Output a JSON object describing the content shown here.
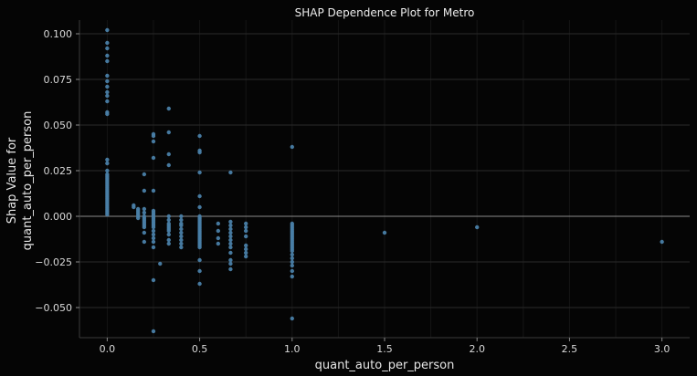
{
  "chart_data": {
    "type": "scatter",
    "title": "SHAP Dependence Plot for Metro",
    "xlabel": "quant_auto_per_person",
    "ylabel_lines": [
      "Shap Value for",
      "quant_auto_per_person"
    ],
    "xlim": [
      -0.15,
      3.15
    ],
    "ylim": [
      -0.0665,
      0.1075
    ],
    "x_ticks": [
      0.0,
      0.5,
      1.0,
      1.5,
      2.0,
      2.5,
      3.0
    ],
    "x_tick_labels": [
      "0.0",
      "0.5",
      "1.0",
      "1.5",
      "2.0",
      "2.5",
      "3.0"
    ],
    "y_ticks": [
      -0.05,
      -0.025,
      0.0,
      0.025,
      0.05,
      0.075,
      0.1
    ],
    "y_tick_labels": [
      "−0.050",
      "−0.025",
      "0.000",
      "0.025",
      "0.050",
      "0.075",
      "0.100"
    ],
    "x_minor_grid": [
      0.0,
      0.25,
      0.5,
      0.75,
      1.0,
      1.25,
      1.5,
      1.75,
      2.0,
      2.25,
      2.5,
      2.75,
      3.0
    ],
    "grid": true,
    "reference_line_y": 0.0,
    "point_color": "#4a7fa8",
    "points": [
      [
        0,
        0.102
      ],
      [
        0,
        0.095
      ],
      [
        0,
        0.092
      ],
      [
        0,
        0.088
      ],
      [
        0,
        0.085
      ],
      [
        0,
        0.077
      ],
      [
        0,
        0.074
      ],
      [
        0,
        0.071
      ],
      [
        0,
        0.068
      ],
      [
        0,
        0.066
      ],
      [
        0,
        0.063
      ],
      [
        0,
        0.057
      ],
      [
        0,
        0.056
      ],
      [
        0,
        0.031
      ],
      [
        0,
        0.029
      ],
      [
        0,
        0.025
      ],
      [
        0,
        0.023
      ],
      [
        0,
        0.022
      ],
      [
        0,
        0.021
      ],
      [
        0,
        0.02
      ],
      [
        0,
        0.019
      ],
      [
        0,
        0.018
      ],
      [
        0,
        0.017
      ],
      [
        0,
        0.016
      ],
      [
        0,
        0.015
      ],
      [
        0,
        0.014
      ],
      [
        0,
        0.013
      ],
      [
        0,
        0.012
      ],
      [
        0,
        0.011
      ],
      [
        0,
        0.01
      ],
      [
        0,
        0.009
      ],
      [
        0,
        0.008
      ],
      [
        0,
        0.007
      ],
      [
        0,
        0.006
      ],
      [
        0,
        0.005
      ],
      [
        0,
        0.004
      ],
      [
        0,
        0.003
      ],
      [
        0,
        0.002
      ],
      [
        0,
        0.001
      ],
      [
        0.143,
        0.006
      ],
      [
        0.143,
        0.005
      ],
      [
        0.167,
        0.004
      ],
      [
        0.167,
        0.003
      ],
      [
        0.167,
        0.002
      ],
      [
        0.167,
        0.001
      ],
      [
        0.167,
        0.0
      ],
      [
        0.167,
        -0.001
      ],
      [
        0.2,
        0.023
      ],
      [
        0.2,
        0.014
      ],
      [
        0.2,
        0.004
      ],
      [
        0.2,
        0.002
      ],
      [
        0.2,
        0.0
      ],
      [
        0.2,
        -0.001
      ],
      [
        0.2,
        -0.002
      ],
      [
        0.2,
        -0.003
      ],
      [
        0.2,
        -0.004
      ],
      [
        0.2,
        -0.005
      ],
      [
        0.2,
        -0.006
      ],
      [
        0.2,
        -0.009
      ],
      [
        0.2,
        -0.014
      ],
      [
        0.25,
        0.045
      ],
      [
        0.25,
        0.044
      ],
      [
        0.25,
        0.041
      ],
      [
        0.25,
        0.032
      ],
      [
        0.25,
        0.014
      ],
      [
        0.25,
        0.003
      ],
      [
        0.25,
        0.002
      ],
      [
        0.25,
        0.001
      ],
      [
        0.25,
        0.0
      ],
      [
        0.25,
        -0.001
      ],
      [
        0.25,
        -0.002
      ],
      [
        0.25,
        -0.003
      ],
      [
        0.25,
        -0.004
      ],
      [
        0.25,
        -0.005
      ],
      [
        0.25,
        -0.006
      ],
      [
        0.25,
        -0.008
      ],
      [
        0.25,
        -0.01
      ],
      [
        0.25,
        -0.012
      ],
      [
        0.25,
        -0.014
      ],
      [
        0.25,
        -0.017
      ],
      [
        0.25,
        -0.035
      ],
      [
        0.25,
        -0.063
      ],
      [
        0.286,
        -0.026
      ],
      [
        0.333,
        0.059
      ],
      [
        0.333,
        0.046
      ],
      [
        0.333,
        0.034
      ],
      [
        0.333,
        0.028
      ],
      [
        0.333,
        0.0
      ],
      [
        0.333,
        -0.002
      ],
      [
        0.333,
        -0.004
      ],
      [
        0.333,
        -0.005
      ],
      [
        0.333,
        -0.006
      ],
      [
        0.333,
        -0.007
      ],
      [
        0.333,
        -0.008
      ],
      [
        0.333,
        -0.01
      ],
      [
        0.333,
        -0.013
      ],
      [
        0.333,
        -0.015
      ],
      [
        0.4,
        0.0
      ],
      [
        0.4,
        -0.002
      ],
      [
        0.4,
        -0.004
      ],
      [
        0.4,
        -0.005
      ],
      [
        0.4,
        -0.007
      ],
      [
        0.4,
        -0.009
      ],
      [
        0.4,
        -0.011
      ],
      [
        0.4,
        -0.013
      ],
      [
        0.4,
        -0.015
      ],
      [
        0.4,
        -0.017
      ],
      [
        0.5,
        0.044
      ],
      [
        0.5,
        0.036
      ],
      [
        0.5,
        0.035
      ],
      [
        0.5,
        0.024
      ],
      [
        0.5,
        0.011
      ],
      [
        0.5,
        0.005
      ],
      [
        0.5,
        0.0
      ],
      [
        0.5,
        -0.001
      ],
      [
        0.5,
        -0.002
      ],
      [
        0.5,
        -0.003
      ],
      [
        0.5,
        -0.004
      ],
      [
        0.5,
        -0.005
      ],
      [
        0.5,
        -0.006
      ],
      [
        0.5,
        -0.007
      ],
      [
        0.5,
        -0.008
      ],
      [
        0.5,
        -0.009
      ],
      [
        0.5,
        -0.01
      ],
      [
        0.5,
        -0.011
      ],
      [
        0.5,
        -0.012
      ],
      [
        0.5,
        -0.013
      ],
      [
        0.5,
        -0.014
      ],
      [
        0.5,
        -0.015
      ],
      [
        0.5,
        -0.016
      ],
      [
        0.5,
        -0.017
      ],
      [
        0.5,
        -0.024
      ],
      [
        0.5,
        -0.03
      ],
      [
        0.5,
        -0.037
      ],
      [
        0.6,
        -0.004
      ],
      [
        0.6,
        -0.008
      ],
      [
        0.6,
        -0.012
      ],
      [
        0.6,
        -0.015
      ],
      [
        0.667,
        0.024
      ],
      [
        0.667,
        -0.003
      ],
      [
        0.667,
        -0.005
      ],
      [
        0.667,
        -0.007
      ],
      [
        0.667,
        -0.009
      ],
      [
        0.667,
        -0.011
      ],
      [
        0.667,
        -0.013
      ],
      [
        0.667,
        -0.015
      ],
      [
        0.667,
        -0.017
      ],
      [
        0.667,
        -0.02
      ],
      [
        0.667,
        -0.024
      ],
      [
        0.667,
        -0.026
      ],
      [
        0.667,
        -0.029
      ],
      [
        0.75,
        -0.004
      ],
      [
        0.75,
        -0.006
      ],
      [
        0.75,
        -0.008
      ],
      [
        0.75,
        -0.011
      ],
      [
        0.75,
        -0.016
      ],
      [
        0.75,
        -0.018
      ],
      [
        0.75,
        -0.02
      ],
      [
        0.75,
        -0.022
      ],
      [
        1.0,
        0.038
      ],
      [
        1.0,
        -0.004
      ],
      [
        1.0,
        -0.005
      ],
      [
        1.0,
        -0.006
      ],
      [
        1.0,
        -0.007
      ],
      [
        1.0,
        -0.008
      ],
      [
        1.0,
        -0.009
      ],
      [
        1.0,
        -0.01
      ],
      [
        1.0,
        -0.011
      ],
      [
        1.0,
        -0.012
      ],
      [
        1.0,
        -0.013
      ],
      [
        1.0,
        -0.014
      ],
      [
        1.0,
        -0.015
      ],
      [
        1.0,
        -0.016
      ],
      [
        1.0,
        -0.017
      ],
      [
        1.0,
        -0.018
      ],
      [
        1.0,
        -0.019
      ],
      [
        1.0,
        -0.021
      ],
      [
        1.0,
        -0.023
      ],
      [
        1.0,
        -0.025
      ],
      [
        1.0,
        -0.027
      ],
      [
        1.0,
        -0.03
      ],
      [
        1.0,
        -0.033
      ],
      [
        1.0,
        -0.056
      ],
      [
        1.5,
        -0.009
      ],
      [
        2.0,
        -0.006
      ],
      [
        3.0,
        -0.014
      ]
    ]
  }
}
